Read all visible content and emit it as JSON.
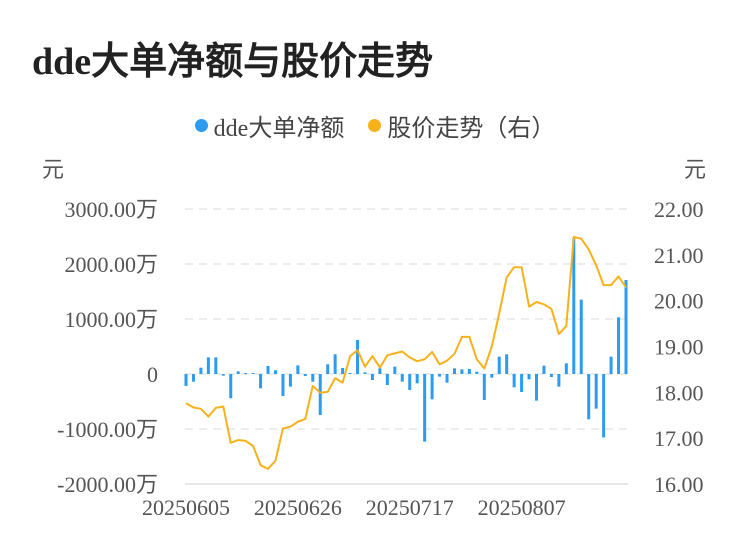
{
  "title": "dde大单净额与股价走势",
  "colors": {
    "bar": "#2d9bf0",
    "line": "#f7b21b",
    "grid": "#e6e6e6"
  },
  "chart_data": {
    "type": "bar+line",
    "title": "dde大单净额与股价走势",
    "legend": [
      "dde大单净额",
      "股价走势（右）"
    ],
    "legend_position": "top-center",
    "ylabel_left": "元",
    "ylabel_right": "元",
    "y_left_ticks": [
      "3000.00万",
      "2000.00万",
      "1000.00万",
      "0",
      "-1000.00万",
      "-2000.00万"
    ],
    "y_left_range": [
      -2000,
      3000
    ],
    "y_right_ticks": [
      "22.00",
      "21.00",
      "20.00",
      "19.00",
      "18.00",
      "17.00",
      "16.00"
    ],
    "y_right_range": [
      16,
      22
    ],
    "x_tick_labels": [
      {
        "index": 0,
        "label": "20250605"
      },
      {
        "index": 15,
        "label": "20250626"
      },
      {
        "index": 30,
        "label": "20250717"
      },
      {
        "index": 45,
        "label": "20250807"
      }
    ],
    "grid": true,
    "series": [
      {
        "name": "dde大单净额",
        "type": "bar",
        "unit": "万元",
        "axis": "left",
        "values": [
          -218,
          -140,
          115,
          303,
          303,
          -30,
          -442,
          48,
          18,
          18,
          -260,
          145,
          67,
          -400,
          -230,
          157,
          -36,
          -140,
          -745,
          176,
          358,
          109,
          18,
          618,
          30,
          -109,
          103,
          -200,
          133,
          -140,
          -290,
          -170,
          -1230,
          -460,
          -48,
          -158,
          103,
          85,
          91,
          42,
          -473,
          -67,
          315,
          358,
          -242,
          -327,
          -97,
          -485,
          152,
          -55,
          -230,
          194,
          2467,
          1352,
          -824,
          -630,
          -1152,
          315,
          1030,
          1709
        ]
      },
      {
        "name": "股价走势（右）",
        "type": "line",
        "unit": "元",
        "axis": "right",
        "values": [
          17.76,
          17.67,
          17.64,
          17.47,
          17.66,
          17.69,
          16.9,
          16.96,
          16.94,
          16.83,
          16.41,
          16.33,
          16.51,
          17.21,
          17.25,
          17.36,
          17.42,
          18.14,
          17.99,
          18.01,
          18.31,
          18.21,
          18.79,
          18.92,
          18.56,
          18.79,
          18.54,
          18.81,
          18.85,
          18.89,
          18.76,
          18.68,
          18.72,
          18.88,
          18.61,
          18.69,
          18.84,
          19.21,
          19.21,
          18.72,
          18.52,
          19.0,
          19.72,
          20.51,
          20.73,
          20.73,
          19.87,
          19.97,
          19.92,
          19.82,
          19.27,
          19.45,
          21.39,
          21.35,
          21.12,
          20.77,
          20.34,
          20.34,
          20.53,
          20.29
        ]
      }
    ]
  }
}
